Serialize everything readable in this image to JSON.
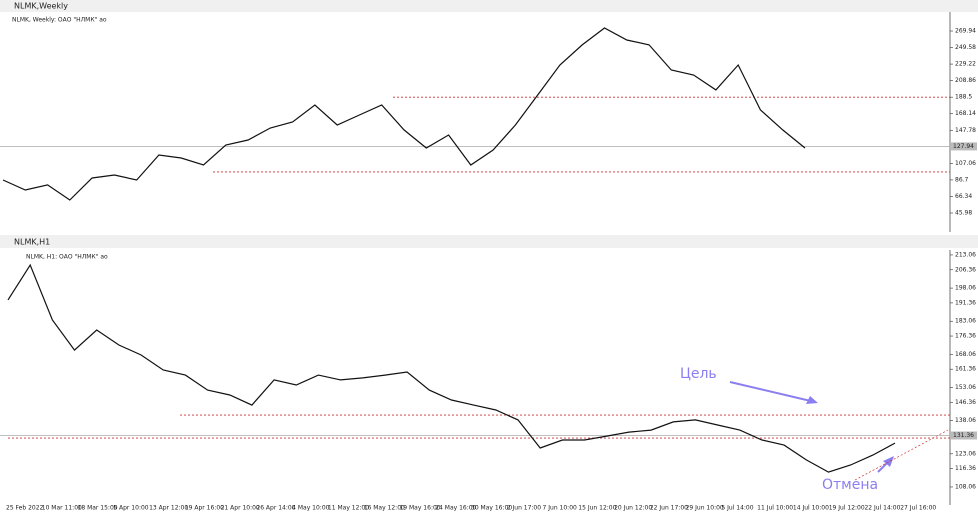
{
  "windows": [
    {
      "title": "NLMK,Weekly",
      "header": "NLMK, Weekly:  ОАО \"НЛМК\" ао",
      "ylim": [
        22.6,
        290.86
      ],
      "yticks": [
        269.94,
        249.58,
        229.22,
        208.86,
        188.5,
        168.14,
        147.78,
        107.06,
        86.7,
        66.34,
        45.98
      ],
      "current": 127.94,
      "levels": [
        188.5,
        96.5
      ],
      "xticks": [],
      "values": [
        86.6,
        74.3,
        80.5,
        62.0,
        89.1,
        92.8,
        86.6,
        117.4,
        113.7,
        105.1,
        129.7,
        135.8,
        150.6,
        158.0,
        178.9,
        154.3,
        166.6,
        178.9,
        148.2,
        126.0,
        142.0,
        105.1,
        123.5,
        154.3,
        191.2,
        228.1,
        252.8,
        273.6,
        258.9,
        252.8,
        222.0,
        215.8,
        197.4,
        228.1,
        172.8,
        148.2,
        126.0
      ],
      "annotations": []
    },
    {
      "title": "NLMK,H1",
      "header": "NLMK, H1:  ОАО \"НЛМК\" ао",
      "ylim": [
        99.9,
        215.3
      ],
      "yticks": [
        213.06,
        206.36,
        198.06,
        191.36,
        183.06,
        176.36,
        168.06,
        161.36,
        153.06,
        146.36,
        138.06,
        123.06,
        116.36,
        108.06
      ],
      "current": 131.36,
      "levels": [
        140.6,
        130.2
      ],
      "xticks": [
        "25 Feb 2022",
        "10 Mar 11:00",
        "18 Mar 15:00",
        "5 Apr 10:00",
        "13 Apr 12:00",
        "19 Apr 16:00",
        "21 Apr 10:00",
        "26 Apr 14:00",
        "4 May 10:00",
        "11 May 12:00",
        "16 May 12:00",
        "19 May 16:00",
        "24 May 16:00",
        "30 May 16:00",
        "2 Jun 17:00",
        "7 Jun 10:00",
        "15 Jun 12:00",
        "20 Jun 12:00",
        "22 Jun 17:00",
        "29 Jun 10:00",
        "5 Jul 14:00",
        "11 Jul 10:00",
        "14 Jul 10:00",
        "19 Jul 12:00",
        "22 Jul 14:00",
        "27 Jul 16:00"
      ],
      "values": [
        192.7,
        208.5,
        183.6,
        170.0,
        179.1,
        172.3,
        167.8,
        161.0,
        158.7,
        151.9,
        149.7,
        145.1,
        156.5,
        154.2,
        158.7,
        156.5,
        157.4,
        158.7,
        160.1,
        151.9,
        147.4,
        145.1,
        142.9,
        138.4,
        125.7,
        129.3,
        129.3,
        131.1,
        132.9,
        133.8,
        137.5,
        138.4,
        136.1,
        133.8,
        129.3,
        127.0,
        120.3,
        114.8,
        118.0,
        122.5,
        127.9
      ],
      "annotations": [
        "Цель",
        "Отмена"
      ]
    }
  ]
}
